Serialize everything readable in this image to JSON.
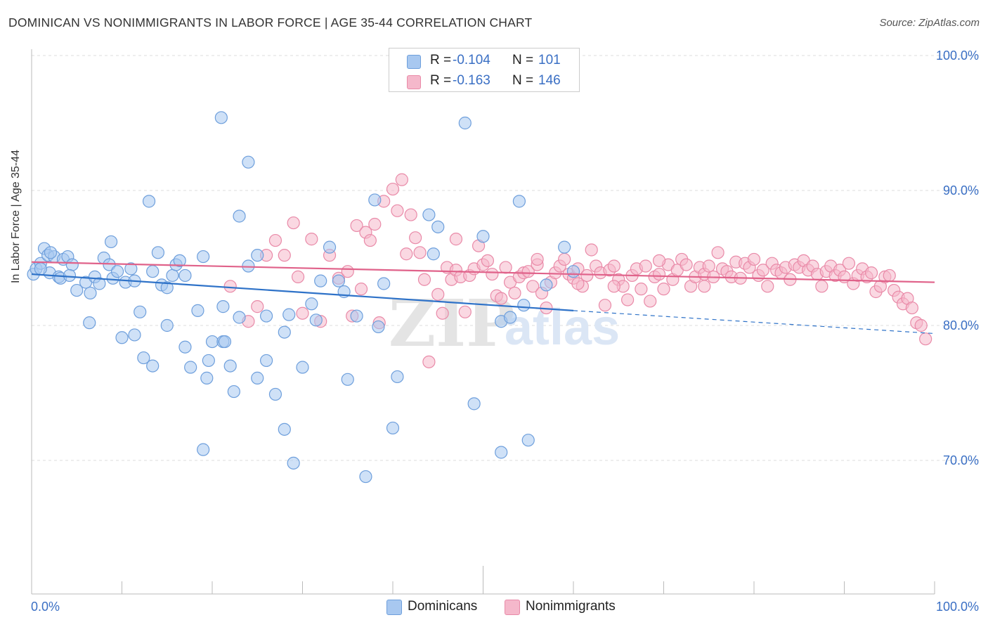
{
  "header": {
    "title": "DOMINICAN VS NONIMMIGRANTS IN LABOR FORCE | AGE 35-44 CORRELATION CHART",
    "source": "Source: ZipAtlas.com"
  },
  "legend_box": {
    "rows": [
      {
        "r_label": "R =",
        "r_value": "-0.104",
        "n_label": "N =",
        "n_value": "101",
        "color": "#a8c8f0"
      },
      {
        "r_label": "R =",
        "r_value": "-0.163",
        "n_label": "N =",
        "n_value": "146",
        "color": "#f5b8cb"
      }
    ]
  },
  "bottom_legend": [
    {
      "label": "Dominicans",
      "color": "#a8c8f0"
    },
    {
      "label": "Nonimmigrants",
      "color": "#f5b8cb"
    }
  ],
  "watermark": {
    "zip": "ZIP",
    "atlas": "atlas"
  },
  "colors": {
    "blue_fill": "#a8c8f0",
    "blue_stroke": "#6e9fdc",
    "blue_line": "#2e72c8",
    "pink_fill": "#f5b8cb",
    "pink_stroke": "#e98aa8",
    "pink_line": "#e0628a",
    "tick_label": "#3a6fc4",
    "grid": "#dddddd"
  },
  "chart_data": {
    "type": "scatter",
    "title": "DOMINICAN VS NONIMMIGRANTS IN LABOR FORCE | AGE 35-44 CORRELATION CHART",
    "xlabel": "",
    "ylabel": "In Labor Force | Age 35-44",
    "xlim": [
      0,
      100
    ],
    "ylim": [
      60,
      103
    ],
    "x_tick_labels": [
      "0.0%",
      "100.0%"
    ],
    "y_ticks": [
      70,
      80,
      90,
      100
    ],
    "y_tick_labels": [
      "70.0%",
      "80.0%",
      "90.0%",
      "100.0%"
    ],
    "grid": true,
    "legend_position": "top-center",
    "series": [
      {
        "name": "Dominicans",
        "r": -0.104,
        "n": 101,
        "trend": {
          "x0": 0,
          "y0": 83.8,
          "x1": 60,
          "y1": 81.1,
          "dashed_to_x": 100,
          "dashed_to_y": 79.4
        },
        "points": [
          [
            0.2,
            83.8
          ],
          [
            0.5,
            84.2
          ],
          [
            1.0,
            84.6
          ],
          [
            1.4,
            85.7
          ],
          [
            1.8,
            85.2
          ],
          [
            2.0,
            83.9
          ],
          [
            2.5,
            85.1
          ],
          [
            3.0,
            83.6
          ],
          [
            3.5,
            84.9
          ],
          [
            4.0,
            85.1
          ],
          [
            4.5,
            84.5
          ],
          [
            5.0,
            82.6
          ],
          [
            6.0,
            83.2
          ],
          [
            6.5,
            82.4
          ],
          [
            7.0,
            83.6
          ],
          [
            7.5,
            83.1
          ],
          [
            8.0,
            85.0
          ],
          [
            3.2,
            83.5
          ],
          [
            4.2,
            83.7
          ],
          [
            1.0,
            84.2
          ],
          [
            2.1,
            85.4
          ],
          [
            8.6,
            84.5
          ],
          [
            9.0,
            83.5
          ],
          [
            9.5,
            84.0
          ],
          [
            10.4,
            83.2
          ],
          [
            11.0,
            84.2
          ],
          [
            11.4,
            83.3
          ],
          [
            12.0,
            81.0
          ],
          [
            13.4,
            84.0
          ],
          [
            14.0,
            85.4
          ],
          [
            14.4,
            83.0
          ],
          [
            15.0,
            82.8
          ],
          [
            15.6,
            83.7
          ],
          [
            16.0,
            84.5
          ],
          [
            16.4,
            84.8
          ],
          [
            17.0,
            83.7
          ],
          [
            18.4,
            81.1
          ],
          [
            19.0,
            85.1
          ],
          [
            6.4,
            80.2
          ],
          [
            8.8,
            86.2
          ],
          [
            10.0,
            79.1
          ],
          [
            11.4,
            79.3
          ],
          [
            12.4,
            77.6
          ],
          [
            13.4,
            77.0
          ],
          [
            15.0,
            80.0
          ],
          [
            17.0,
            78.4
          ],
          [
            17.6,
            76.9
          ],
          [
            19.4,
            76.1
          ],
          [
            19.6,
            77.4
          ],
          [
            20.0,
            78.8
          ],
          [
            21.2,
            78.8
          ],
          [
            21.4,
            78.8
          ],
          [
            21.2,
            81.4
          ],
          [
            22.0,
            77.0
          ],
          [
            22.4,
            75.1
          ],
          [
            13.0,
            89.2
          ],
          [
            25.0,
            85.2
          ],
          [
            26.0,
            80.7
          ],
          [
            28.0,
            79.5
          ],
          [
            28.5,
            80.8
          ],
          [
            23.0,
            88.1
          ],
          [
            24.0,
            84.4
          ],
          [
            25.0,
            76.1
          ],
          [
            26.0,
            77.4
          ],
          [
            27.0,
            74.9
          ],
          [
            28.0,
            72.3
          ],
          [
            29.0,
            69.8
          ],
          [
            30.0,
            76.9
          ],
          [
            31.0,
            81.6
          ],
          [
            31.5,
            80.4
          ],
          [
            32.0,
            83.3
          ],
          [
            33.0,
            85.8
          ],
          [
            34.0,
            83.3
          ],
          [
            34.6,
            82.5
          ],
          [
            35.0,
            76.0
          ],
          [
            36.0,
            80.7
          ],
          [
            37.0,
            68.8
          ],
          [
            38.0,
            89.3
          ],
          [
            38.4,
            79.9
          ],
          [
            39.0,
            83.1
          ],
          [
            40.0,
            72.4
          ],
          [
            40.5,
            76.2
          ],
          [
            44.0,
            88.2
          ],
          [
            44.5,
            85.3
          ],
          [
            45.0,
            87.3
          ],
          [
            48.0,
            95.0
          ],
          [
            49.0,
            74.2
          ],
          [
            50.0,
            86.6
          ],
          [
            52.0,
            80.3
          ],
          [
            53.0,
            80.6
          ],
          [
            54.0,
            89.2
          ],
          [
            55.0,
            71.5
          ],
          [
            57.0,
            83.0
          ],
          [
            59.0,
            85.8
          ],
          [
            60.0,
            84.0
          ],
          [
            19.0,
            70.8
          ],
          [
            23.0,
            80.6
          ],
          [
            52.0,
            70.6
          ],
          [
            54.5,
            81.5
          ],
          [
            24.0,
            92.1
          ],
          [
            21.0,
            95.4
          ]
        ]
      },
      {
        "name": "Nonimmigrants",
        "r": -0.163,
        "n": 146,
        "trend": {
          "x0": 0,
          "y0": 84.7,
          "x1": 100,
          "y1": 83.2
        },
        "points": [
          [
            22.0,
            82.9
          ],
          [
            24.0,
            80.3
          ],
          [
            25.0,
            81.4
          ],
          [
            26.0,
            85.2
          ],
          [
            27.0,
            86.3
          ],
          [
            28.0,
            85.2
          ],
          [
            29.0,
            87.6
          ],
          [
            29.5,
            83.6
          ],
          [
            30.0,
            80.9
          ],
          [
            31.0,
            86.4
          ],
          [
            32.0,
            80.3
          ],
          [
            33.0,
            85.2
          ],
          [
            34.0,
            83.5
          ],
          [
            35.0,
            84.0
          ],
          [
            35.5,
            80.7
          ],
          [
            36.0,
            87.4
          ],
          [
            36.5,
            82.7
          ],
          [
            37.0,
            86.9
          ],
          [
            37.5,
            86.3
          ],
          [
            38.0,
            87.5
          ],
          [
            38.5,
            80.2
          ],
          [
            39.0,
            89.2
          ],
          [
            40.0,
            90.1
          ],
          [
            40.5,
            88.5
          ],
          [
            41.0,
            90.8
          ],
          [
            41.5,
            85.3
          ],
          [
            42.0,
            88.2
          ],
          [
            42.5,
            86.5
          ],
          [
            43.0,
            85.4
          ],
          [
            43.5,
            83.4
          ],
          [
            44.0,
            77.3
          ],
          [
            45.0,
            82.3
          ],
          [
            45.5,
            80.9
          ],
          [
            46.0,
            84.3
          ],
          [
            46.5,
            83.4
          ],
          [
            47.0,
            84.1
          ],
          [
            47.5,
            83.6
          ],
          [
            48.0,
            81.0
          ],
          [
            48.5,
            83.7
          ],
          [
            49.0,
            84.2
          ],
          [
            49.5,
            85.9
          ],
          [
            50.0,
            84.5
          ],
          [
            50.5,
            84.8
          ],
          [
            51.0,
            83.8
          ],
          [
            51.5,
            82.2
          ],
          [
            52.0,
            82.0
          ],
          [
            52.5,
            84.3
          ],
          [
            53.0,
            83.2
          ],
          [
            53.5,
            82.4
          ],
          [
            54.0,
            83.6
          ],
          [
            54.5,
            83.9
          ],
          [
            55.0,
            84.0
          ],
          [
            55.5,
            82.9
          ],
          [
            56.0,
            84.5
          ],
          [
            56.5,
            82.4
          ],
          [
            57.0,
            81.3
          ],
          [
            57.5,
            83.2
          ],
          [
            58.0,
            83.9
          ],
          [
            58.5,
            84.4
          ],
          [
            59.0,
            84.9
          ],
          [
            59.5,
            83.8
          ],
          [
            60.0,
            83.5
          ],
          [
            60.5,
            84.2
          ],
          [
            61.0,
            82.9
          ],
          [
            61.5,
            83.7
          ],
          [
            62.0,
            85.6
          ],
          [
            62.5,
            84.4
          ],
          [
            63.0,
            83.9
          ],
          [
            63.5,
            81.5
          ],
          [
            64.0,
            84.1
          ],
          [
            64.5,
            84.4
          ],
          [
            65.0,
            83.4
          ],
          [
            65.5,
            82.9
          ],
          [
            66.0,
            81.9
          ],
          [
            66.5,
            83.7
          ],
          [
            67.0,
            84.2
          ],
          [
            67.5,
            82.7
          ],
          [
            68.0,
            84.4
          ],
          [
            68.5,
            81.8
          ],
          [
            69.0,
            83.6
          ],
          [
            69.5,
            83.8
          ],
          [
            70.0,
            82.7
          ],
          [
            70.5,
            84.5
          ],
          [
            71.0,
            83.4
          ],
          [
            71.5,
            84.1
          ],
          [
            72.0,
            84.9
          ],
          [
            72.5,
            84.5
          ],
          [
            73.0,
            82.9
          ],
          [
            73.5,
            83.6
          ],
          [
            74.0,
            84.3
          ],
          [
            74.5,
            83.8
          ],
          [
            75.0,
            84.4
          ],
          [
            75.5,
            83.6
          ],
          [
            76.0,
            85.4
          ],
          [
            76.5,
            84.2
          ],
          [
            77.0,
            84.0
          ],
          [
            77.5,
            83.6
          ],
          [
            78.0,
            84.7
          ],
          [
            78.5,
            83.5
          ],
          [
            79.0,
            84.6
          ],
          [
            79.5,
            84.3
          ],
          [
            80.0,
            84.9
          ],
          [
            80.5,
            83.7
          ],
          [
            81.0,
            84.1
          ],
          [
            81.5,
            82.9
          ],
          [
            82.0,
            84.6
          ],
          [
            82.5,
            84.1
          ],
          [
            83.0,
            83.9
          ],
          [
            83.5,
            84.3
          ],
          [
            84.0,
            83.4
          ],
          [
            84.5,
            84.5
          ],
          [
            85.0,
            84.3
          ],
          [
            85.5,
            84.8
          ],
          [
            86.0,
            84.1
          ],
          [
            86.5,
            84.4
          ],
          [
            87.0,
            83.8
          ],
          [
            87.5,
            82.9
          ],
          [
            88.0,
            84.0
          ],
          [
            88.5,
            84.4
          ],
          [
            89.0,
            83.7
          ],
          [
            89.5,
            84.1
          ],
          [
            90.0,
            83.6
          ],
          [
            90.5,
            84.6
          ],
          [
            91.0,
            83.1
          ],
          [
            91.5,
            83.7
          ],
          [
            92.0,
            84.2
          ],
          [
            92.5,
            83.6
          ],
          [
            93.0,
            83.9
          ],
          [
            93.5,
            82.5
          ],
          [
            94.0,
            82.9
          ],
          [
            94.5,
            83.6
          ],
          [
            95.0,
            83.7
          ],
          [
            95.5,
            82.6
          ],
          [
            96.0,
            82.1
          ],
          [
            96.5,
            81.6
          ],
          [
            97.0,
            82.0
          ],
          [
            97.5,
            81.3
          ],
          [
            98.0,
            80.2
          ],
          [
            98.5,
            80.0
          ],
          [
            99.0,
            79.0
          ],
          [
            47.0,
            86.4
          ],
          [
            56.0,
            84.9
          ],
          [
            60.5,
            83.1
          ],
          [
            64.5,
            82.9
          ],
          [
            69.5,
            84.8
          ],
          [
            74.5,
            82.9
          ]
        ]
      }
    ]
  }
}
